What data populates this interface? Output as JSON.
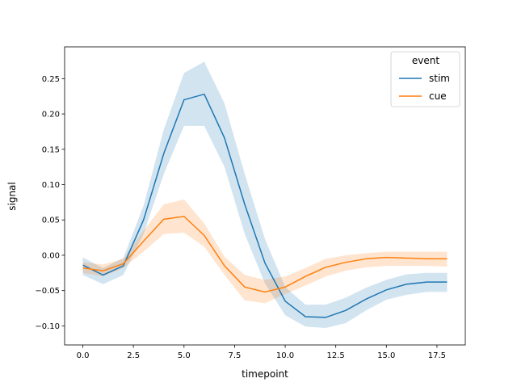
{
  "chart_data": {
    "type": "line",
    "xlabel": "timepoint",
    "ylabel": "signal",
    "xlim": [
      -0.9,
      18.9
    ],
    "ylim": [
      -0.127,
      0.295
    ],
    "xticks": [
      0.0,
      2.5,
      5.0,
      7.5,
      10.0,
      12.5,
      15.0,
      17.5
    ],
    "xtick_labels": [
      "0.0",
      "2.5",
      "5.0",
      "7.5",
      "10.0",
      "12.5",
      "15.0",
      "17.5"
    ],
    "yticks": [
      -0.1,
      -0.05,
      0.0,
      0.05,
      0.1,
      0.15,
      0.2,
      0.25
    ],
    "ytick_labels": [
      "−0.10",
      "−0.05",
      "0.00",
      "0.05",
      "0.10",
      "0.15",
      "0.20",
      "0.25"
    ],
    "grid": false,
    "legend": {
      "title": "event",
      "placement": "top-right"
    },
    "x": [
      0,
      1,
      2,
      3,
      4,
      5,
      6,
      7,
      8,
      9,
      10,
      11,
      12,
      13,
      14,
      15,
      16,
      17,
      18
    ],
    "series": [
      {
        "name": "stim",
        "color": "#1f77b4",
        "values": [
          -0.014,
          -0.028,
          -0.015,
          0.05,
          0.144,
          0.22,
          0.228,
          0.166,
          0.072,
          -0.011,
          -0.065,
          -0.087,
          -0.088,
          -0.078,
          -0.062,
          -0.049,
          -0.041,
          -0.038,
          -0.038
        ],
        "ci_low": [
          -0.028,
          -0.041,
          -0.028,
          0.03,
          0.115,
          0.183,
          0.183,
          0.125,
          0.03,
          -0.04,
          -0.085,
          -0.101,
          -0.103,
          -0.096,
          -0.078,
          -0.063,
          -0.056,
          -0.052,
          -0.052
        ],
        "ci_high": [
          -0.003,
          -0.018,
          -0.004,
          0.07,
          0.178,
          0.258,
          0.274,
          0.215,
          0.115,
          0.023,
          -0.045,
          -0.07,
          -0.07,
          -0.06,
          -0.046,
          -0.035,
          -0.027,
          -0.025,
          -0.025
        ]
      },
      {
        "name": "cue",
        "color": "#ff7f0e",
        "values": [
          -0.018,
          -0.022,
          -0.012,
          0.02,
          0.051,
          0.055,
          0.028,
          -0.015,
          -0.045,
          -0.052,
          -0.045,
          -0.03,
          -0.017,
          -0.01,
          -0.005,
          -0.003,
          -0.004,
          -0.005,
          -0.005
        ],
        "ci_low": [
          -0.025,
          -0.03,
          -0.018,
          0.005,
          0.03,
          0.032,
          0.012,
          -0.028,
          -0.064,
          -0.068,
          -0.055,
          -0.043,
          -0.03,
          -0.022,
          -0.017,
          -0.015,
          -0.015,
          -0.015,
          -0.016
        ],
        "ci_high": [
          -0.01,
          -0.013,
          -0.005,
          0.035,
          0.072,
          0.079,
          0.045,
          -0.002,
          -0.028,
          -0.035,
          -0.03,
          -0.018,
          -0.005,
          0.0,
          0.003,
          0.005,
          0.005,
          0.005,
          0.005
        ]
      }
    ]
  }
}
